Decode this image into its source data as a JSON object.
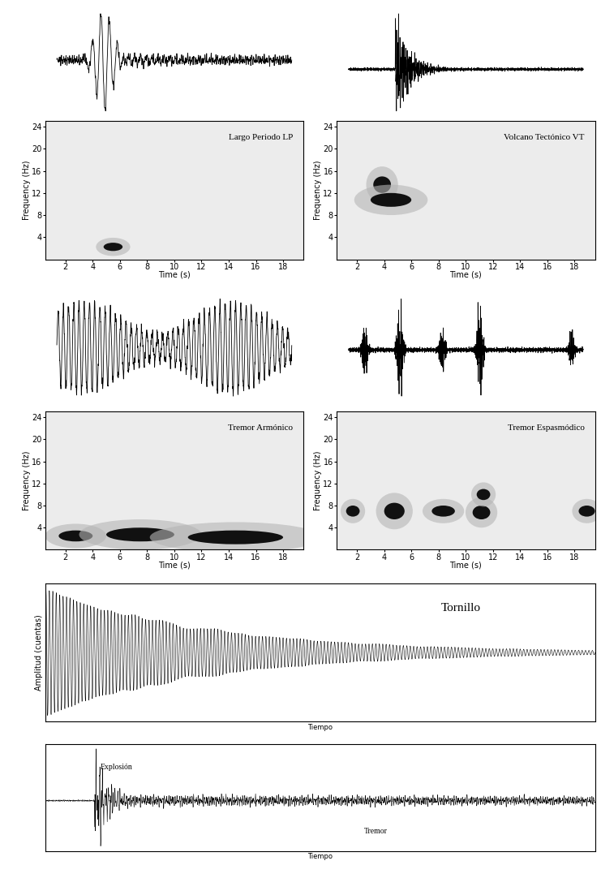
{
  "chart_data": [
    {
      "type": "spectrogram",
      "title": "Largo Periodo LP",
      "xlabel": "Time (s)",
      "ylabel": "Frequency (Hz)",
      "xlim": [
        0.5,
        19.5
      ],
      "ylim": [
        0,
        25
      ],
      "xticks": [
        2,
        4,
        6,
        8,
        10,
        12,
        14,
        16,
        18
      ],
      "yticks": [
        4,
        8,
        12,
        16,
        20,
        24
      ],
      "energy": [
        {
          "time": [
            4.8,
            6.2
          ],
          "freq": [
            1.5,
            3
          ]
        }
      ]
    },
    {
      "type": "spectrogram",
      "title": "Volcano Tectónico VT",
      "xlabel": "Time (s)",
      "ylabel": "Frequency (Hz)",
      "xlim": [
        0.5,
        19.5
      ],
      "ylim": [
        0,
        25
      ],
      "xticks": [
        2,
        4,
        6,
        8,
        10,
        12,
        14,
        16,
        18
      ],
      "yticks": [
        4,
        8,
        12,
        16,
        20,
        24
      ],
      "energy": [
        {
          "time": [
            3.2,
            4.5
          ],
          "freq": [
            12,
            15
          ]
        },
        {
          "time": [
            3,
            6
          ],
          "freq": [
            9.5,
            12
          ]
        }
      ]
    },
    {
      "type": "spectrogram",
      "title": "Tremor Armónico",
      "xlabel": "Time (s)",
      "ylabel": "Frequency (Hz)",
      "xlim": [
        0.5,
        19.5
      ],
      "ylim": [
        0,
        25
      ],
      "xticks": [
        2,
        4,
        6,
        8,
        10,
        12,
        14,
        16,
        18
      ],
      "yticks": [
        4,
        8,
        12,
        16,
        20,
        24
      ],
      "energy": [
        {
          "time": [
            1.5,
            4
          ],
          "freq": [
            1.5,
            3.5
          ]
        },
        {
          "time": [
            5,
            10
          ],
          "freq": [
            1.5,
            4
          ]
        },
        {
          "time": [
            11,
            18
          ],
          "freq": [
            1,
            3.5
          ]
        }
      ]
    },
    {
      "type": "spectrogram",
      "title": "Tremor Espasmódico",
      "xlabel": "Time (s)",
      "ylabel": "Frequency (Hz)",
      "xlim": [
        0.5,
        19.5
      ],
      "ylim": [
        0,
        25
      ],
      "xticks": [
        2,
        4,
        6,
        8,
        10,
        12,
        14,
        16,
        18
      ],
      "yticks": [
        4,
        8,
        12,
        16,
        20,
        24
      ],
      "energy": [
        {
          "time": [
            1.2,
            2.2
          ],
          "freq": [
            6,
            8
          ]
        },
        {
          "time": [
            4,
            5.5
          ],
          "freq": [
            5.5,
            8.5
          ]
        },
        {
          "time": [
            7.5,
            9.2
          ],
          "freq": [
            6,
            8
          ]
        },
        {
          "time": [
            10.5,
            11.8
          ],
          "freq": [
            5.5,
            8
          ]
        },
        {
          "time": [
            10.8,
            11.8
          ],
          "freq": [
            9,
            11
          ]
        },
        {
          "time": [
            18.3,
            19.5
          ],
          "freq": [
            6,
            8
          ]
        }
      ]
    },
    {
      "type": "seismogram",
      "title": "Tornillo",
      "ylabel": "Amplitud (cuentas)",
      "xlabel": "Tiempo",
      "tick_labels": false
    },
    {
      "type": "seismogram",
      "xlabel": "Tiempo",
      "tick_labels": false,
      "annotations": [
        "Explosión",
        "Tremor"
      ]
    }
  ]
}
